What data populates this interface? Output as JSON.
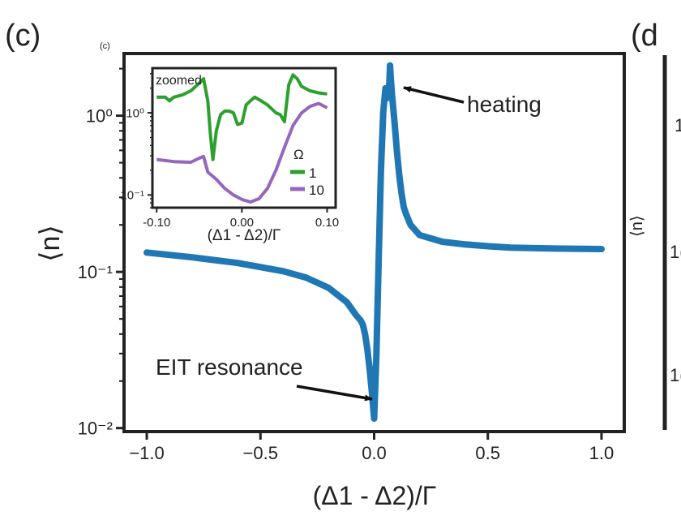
{
  "panel_label": "(c)",
  "small_panel_label": "(c)",
  "next_panel_label": "(d",
  "next_panel_partial_ticks": [
    "1",
    "1(",
    "1("
  ],
  "next_panel_ylabel": "⟨n⟩",
  "annotations": {
    "heating": "heating",
    "eit": "EIT resonance",
    "heating_color": "#e32227"
  },
  "chart_data": [
    {
      "type": "line",
      "xlabel": "(Δ1 - Δ2)/Γ",
      "ylabel": "⟨n⟩",
      "xlim": [
        -1.1,
        1.1
      ],
      "ylim": [
        0.0095,
        2.5
      ],
      "yscale": "log",
      "xticks": [
        -1.0,
        -0.5,
        0.0,
        0.5,
        1.0
      ],
      "xtick_labels": [
        "−1.0",
        "−0.5",
        "0.0",
        "0.5",
        "1.0"
      ],
      "yticks": [
        0.01,
        0.1,
        1
      ],
      "ytick_labels": [
        "10⁻²",
        "10⁻¹",
        "10⁰"
      ],
      "grid": false,
      "series": [
        {
          "color": "#1f77b4",
          "x": [
            -1.0,
            -0.8,
            -0.6,
            -0.4,
            -0.3,
            -0.2,
            -0.12,
            -0.08,
            -0.06,
            -0.05,
            -0.04,
            -0.03,
            -0.02,
            -0.01,
            0.0,
            0.01,
            0.02,
            0.03,
            0.04,
            0.05,
            0.06,
            0.065,
            0.07,
            0.075,
            0.08,
            0.09,
            0.1,
            0.11,
            0.12,
            0.13,
            0.14,
            0.16,
            0.2,
            0.3,
            0.4,
            0.5,
            0.6,
            0.8,
            1.0
          ],
          "y": [
            0.133,
            0.124,
            0.114,
            0.101,
            0.092,
            0.079,
            0.064,
            0.053,
            0.049,
            0.046,
            0.04,
            0.032,
            0.024,
            0.017,
            0.0115,
            0.03,
            0.12,
            0.45,
            1.05,
            1.5,
            1.3,
            1.4,
            2.1,
            1.6,
            1.3,
            0.9,
            0.6,
            0.42,
            0.32,
            0.26,
            0.235,
            0.2,
            0.172,
            0.156,
            0.15,
            0.146,
            0.143,
            0.141,
            0.14
          ]
        }
      ]
    },
    {
      "type": "line",
      "title": "zoomed",
      "xlabel": "(Δ1 - Δ2)/Γ",
      "xlim": [
        -0.105,
        0.11
      ],
      "ylim": [
        0.07,
        3.5
      ],
      "yscale": "log",
      "xticks": [
        -0.1,
        0.0,
        0.1
      ],
      "xtick_labels": [
        "-0.10",
        "0.00",
        "0.10"
      ],
      "yticks": [
        0.1,
        1
      ],
      "ytick_labels": [
        "10⁻¹",
        "10⁰"
      ],
      "legend": {
        "title": "Ω",
        "placement": "lower-right"
      },
      "series": [
        {
          "name": "1",
          "color": "#2ca02c",
          "x": [
            -0.1,
            -0.09,
            -0.085,
            -0.08,
            -0.07,
            -0.06,
            -0.05,
            -0.045,
            -0.04,
            -0.037,
            -0.034,
            -0.03,
            -0.025,
            -0.02,
            -0.015,
            -0.01,
            -0.005,
            0.0,
            0.005,
            0.01,
            0.015,
            0.02,
            0.03,
            0.04,
            0.045,
            0.05,
            0.055,
            0.06,
            0.065,
            0.07,
            0.08,
            0.09,
            0.1
          ],
          "y": [
            1.55,
            1.55,
            1.4,
            1.55,
            1.65,
            1.85,
            2.3,
            2.6,
            1.4,
            0.55,
            0.27,
            0.6,
            0.95,
            1.05,
            1.05,
            1.0,
            0.72,
            0.75,
            1.25,
            1.4,
            1.55,
            1.45,
            1.25,
            1.0,
            0.95,
            0.78,
            2.2,
            2.9,
            2.6,
            2.1,
            1.85,
            1.75,
            1.7
          ]
        },
        {
          "name": "10",
          "color": "#9467bd",
          "x": [
            -0.1,
            -0.08,
            -0.06,
            -0.05,
            -0.045,
            -0.04,
            -0.03,
            -0.02,
            -0.01,
            0.0,
            0.01,
            0.02,
            0.03,
            0.04,
            0.05,
            0.06,
            0.07,
            0.08,
            0.09,
            0.1
          ],
          "y": [
            0.27,
            0.255,
            0.25,
            0.28,
            0.295,
            0.19,
            0.155,
            0.12,
            0.1,
            0.088,
            0.082,
            0.09,
            0.12,
            0.2,
            0.38,
            0.7,
            1.0,
            1.2,
            1.3,
            1.15
          ]
        }
      ]
    }
  ]
}
